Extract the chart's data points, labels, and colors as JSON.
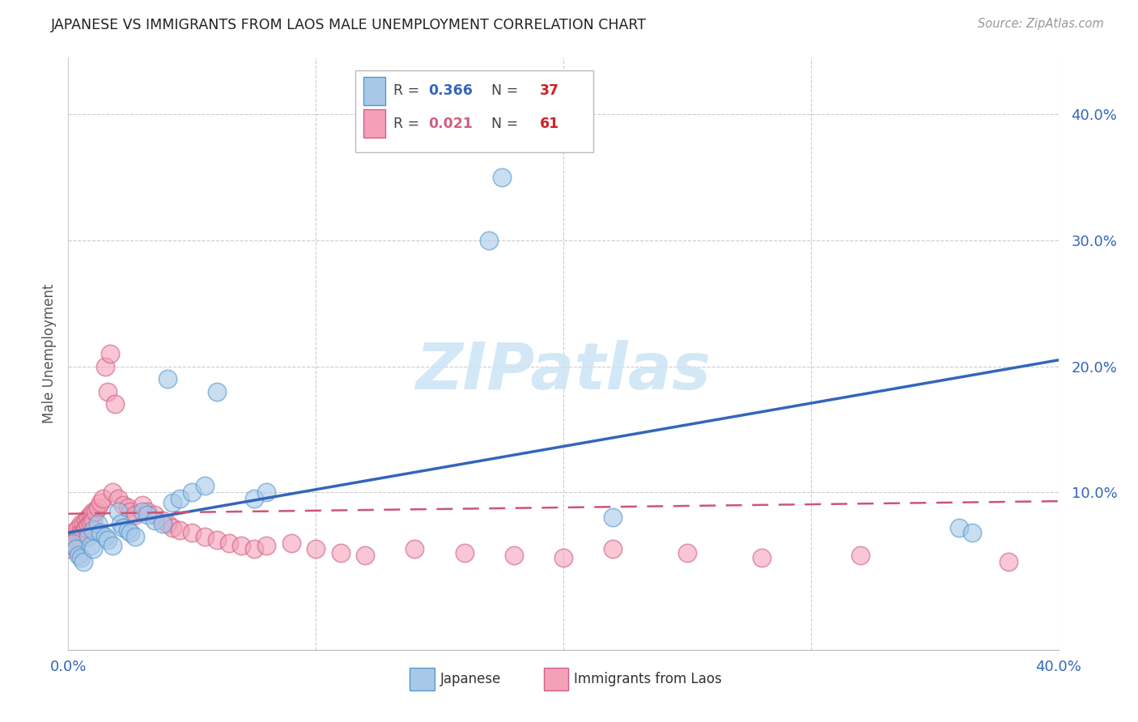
{
  "title": "JAPANESE VS IMMIGRANTS FROM LAOS MALE UNEMPLOYMENT CORRELATION CHART",
  "source": "Source: ZipAtlas.com",
  "ylabel": "Male Unemployment",
  "xlim": [
    0.0,
    0.4
  ],
  "ylim": [
    -0.025,
    0.445
  ],
  "legend1_R": "0.366",
  "legend1_N": "37",
  "legend2_R": "0.021",
  "legend2_N": "61",
  "blue_scatter_color": "#a8c8e8",
  "blue_edge_color": "#5599cc",
  "pink_scatter_color": "#f4a0b8",
  "pink_edge_color": "#d06080",
  "blue_line_color": "#3366bb",
  "pink_line_color": "#cc5577",
  "watermark_color": "#cce4f5",
  "watermark": "ZIPatlas",
  "japanese_x": [
    0.002,
    0.003,
    0.004,
    0.005,
    0.006,
    0.008,
    0.009,
    0.01,
    0.01,
    0.012,
    0.013,
    0.015,
    0.016,
    0.018,
    0.02,
    0.021,
    0.022,
    0.024,
    0.025,
    0.027,
    0.03,
    0.032,
    0.035,
    0.038,
    0.04,
    0.042,
    0.045,
    0.05,
    0.055,
    0.06,
    0.075,
    0.08,
    0.17,
    0.175,
    0.22,
    0.36,
    0.365
  ],
  "japanese_y": [
    0.06,
    0.055,
    0.05,
    0.048,
    0.045,
    0.065,
    0.058,
    0.07,
    0.055,
    0.075,
    0.068,
    0.065,
    0.062,
    0.058,
    0.085,
    0.075,
    0.072,
    0.07,
    0.068,
    0.065,
    0.085,
    0.082,
    0.078,
    0.075,
    0.19,
    0.092,
    0.095,
    0.1,
    0.105,
    0.18,
    0.095,
    0.1,
    0.3,
    0.35,
    0.08,
    0.072,
    0.068
  ],
  "laos_x": [
    0.001,
    0.001,
    0.002,
    0.002,
    0.003,
    0.003,
    0.004,
    0.004,
    0.005,
    0.005,
    0.006,
    0.006,
    0.007,
    0.007,
    0.008,
    0.008,
    0.009,
    0.009,
    0.01,
    0.01,
    0.011,
    0.012,
    0.013,
    0.014,
    0.015,
    0.016,
    0.017,
    0.018,
    0.019,
    0.02,
    0.022,
    0.024,
    0.025,
    0.027,
    0.03,
    0.032,
    0.035,
    0.038,
    0.04,
    0.042,
    0.045,
    0.05,
    0.055,
    0.06,
    0.065,
    0.07,
    0.075,
    0.08,
    0.09,
    0.1,
    0.11,
    0.12,
    0.14,
    0.16,
    0.18,
    0.2,
    0.22,
    0.25,
    0.28,
    0.32,
    0.38
  ],
  "laos_y": [
    0.06,
    0.055,
    0.065,
    0.058,
    0.07,
    0.062,
    0.072,
    0.065,
    0.075,
    0.068,
    0.075,
    0.068,
    0.078,
    0.072,
    0.08,
    0.074,
    0.082,
    0.076,
    0.085,
    0.078,
    0.085,
    0.088,
    0.092,
    0.095,
    0.2,
    0.18,
    0.21,
    0.1,
    0.17,
    0.095,
    0.09,
    0.088,
    0.085,
    0.082,
    0.09,
    0.085,
    0.082,
    0.078,
    0.075,
    0.072,
    0.07,
    0.068,
    0.065,
    0.062,
    0.06,
    0.058,
    0.055,
    0.058,
    0.06,
    0.055,
    0.052,
    0.05,
    0.055,
    0.052,
    0.05,
    0.048,
    0.055,
    0.052,
    0.048,
    0.05,
    0.045
  ],
  "blue_line_start_y": 0.068,
  "blue_line_end_y": 0.205,
  "pink_line_start_y": 0.083,
  "pink_line_end_y": 0.093
}
